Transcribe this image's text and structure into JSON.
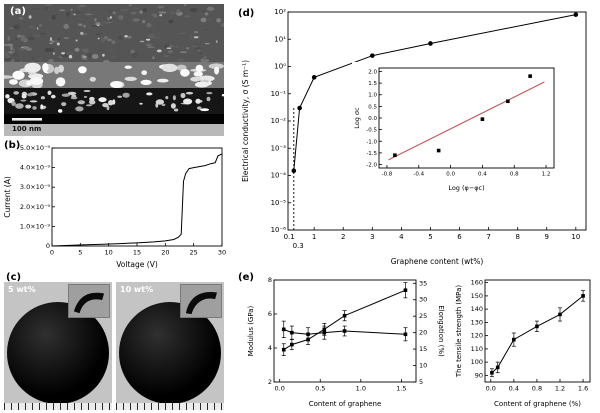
{
  "figure": {
    "panels": {
      "a": {
        "label": "(a)",
        "scale_bar_text": "100 nm"
      },
      "b": {
        "label": "(b)"
      },
      "c": {
        "label": "(c)",
        "photos": [
          {
            "label": "5 wt%"
          },
          {
            "label": "10 wt%"
          }
        ]
      },
      "d": {
        "label": "(d)"
      },
      "e": {
        "label": "(e)"
      }
    },
    "colors": {
      "accent_fit_line": "#c94040",
      "data": "#000000",
      "background": "#ffffff"
    }
  },
  "chart_data": [
    {
      "id": "chart-b",
      "type": "line",
      "xlabel": "Voltage (V)",
      "ylabel": "Current (A)",
      "xlim": [
        0,
        30
      ],
      "xticks": [
        0,
        5,
        10,
        15,
        20,
        25,
        30
      ],
      "xtick_labels": [
        "0",
        "5",
        "10",
        "15",
        "20",
        "25",
        "30"
      ],
      "ylim": [
        0,
        5e-09
      ],
      "yticks": [
        0,
        1e-09,
        2e-09,
        3e-09,
        4e-09,
        5e-09
      ],
      "ytick_labels": [
        "0",
        "1.0×10⁻⁹",
        "2.0×10⁻⁹",
        "3.0×10⁻⁹",
        "4.0×10⁻⁹",
        "5.0×10⁻⁹"
      ],
      "series": [
        {
          "name": "I-V curve",
          "color": "#000000",
          "marker": "none",
          "points": [
            [
              0,
              0
            ],
            [
              3,
              3e-11
            ],
            [
              6,
              6e-11
            ],
            [
              9,
              9e-11
            ],
            [
              12,
              1.2e-10
            ],
            [
              15,
              1.6e-10
            ],
            [
              18,
              2.1e-10
            ],
            [
              20,
              2.6e-10
            ],
            [
              21.5,
              3.3e-10
            ],
            [
              22.3,
              4.5e-10
            ],
            [
              22.8,
              6e-10
            ],
            [
              23.2,
              3.3e-09
            ],
            [
              23.6,
              3.7e-09
            ],
            [
              24.2,
              3.95e-09
            ],
            [
              25,
              4e-09
            ],
            [
              26,
              4.05e-09
            ],
            [
              27,
              4.1e-09
            ],
            [
              28,
              4.2e-09
            ],
            [
              28.8,
              4.25e-09
            ],
            [
              29.3,
              4.6e-09
            ],
            [
              30,
              4.7e-09
            ]
          ]
        }
      ]
    },
    {
      "id": "chart-d",
      "type": "scatter-line",
      "ylog": true,
      "xlabel": "Graphene content (wt%)",
      "ylabel": "Electrical conductivity, σ (S m⁻¹)",
      "xlim": [
        0.1,
        10.35
      ],
      "xticks": [
        1,
        2,
        3,
        4,
        5,
        6,
        7,
        8,
        9,
        10
      ],
      "xtick_labels": [
        "1",
        "2",
        "3",
        "4",
        "5",
        "6",
        "7",
        "8",
        "9",
        "10"
      ],
      "ylim": [
        1e-06,
        100.0
      ],
      "yticks": [
        100.0,
        10.0,
        1,
        0.1,
        0.01,
        0.001,
        0.0001,
        1e-05,
        1e-06
      ],
      "ytick_labels": [
        "10²",
        "10¹",
        "10⁰",
        "10⁻¹",
        "10⁻²",
        "10⁻³",
        "10⁻⁴",
        "10⁻⁵",
        "10⁻⁶"
      ],
      "annotations": [
        {
          "text": "0.1",
          "x": 0.14,
          "row": 1
        },
        {
          "text": "0.3",
          "x": 0.45,
          "row": 2
        }
      ],
      "vlines": [
        {
          "x": 0.3,
          "y": 0.03
        }
      ],
      "series": [
        {
          "name": "conductivity",
          "color": "#000000",
          "marker": "circle",
          "points": [
            [
              0.3,
              0.00015
            ],
            [
              0.5,
              0.03
            ],
            [
              1,
              0.4
            ],
            [
              3,
              2.5
            ],
            [
              5,
              7
            ],
            [
              10,
              80
            ]
          ]
        }
      ]
    },
    {
      "id": "chart-d-inset",
      "type": "scatter",
      "xlabel": "Log (φ−φc)",
      "ylabel": "Log σc",
      "xlim": [
        -0.9,
        1.3
      ],
      "xticks": [
        -0.8,
        -0.4,
        0,
        0.4,
        0.8,
        1.2
      ],
      "xtick_labels": [
        "-0.8",
        "-0.4",
        "0.0",
        "0.4",
        "0.8",
        "1.2"
      ],
      "ylim": [
        -2.15,
        2.15
      ],
      "yticks": [
        -2,
        -1.5,
        -1,
        -0.5,
        0,
        0.5,
        1,
        1.5,
        2
      ],
      "ytick_labels": [
        "-2.0",
        "-1.5",
        "-1.0",
        "-0.5",
        "0.0",
        "0.5",
        "1.0",
        "1.5",
        "2.0"
      ],
      "lines": [
        {
          "x1": -0.78,
          "y1": -1.8,
          "x2": 1.18,
          "y2": 1.55,
          "color": "#c94040",
          "w": 1
        }
      ],
      "series": [
        {
          "name": "percolation fit data",
          "color": "#000000",
          "marker": "square",
          "line": false,
          "points": [
            [
              -0.7,
              -1.6
            ],
            [
              -0.15,
              -1.4
            ],
            [
              0.4,
              -0.05
            ],
            [
              0.72,
              0.72
            ],
            [
              1.0,
              1.8
            ]
          ]
        }
      ]
    },
    {
      "id": "chart-e1",
      "type": "line",
      "xlabel": "Content of graphene",
      "ylabel": "Modulus (GPa)",
      "y2label": "Elongation (%)",
      "xlim": [
        -0.07,
        1.68
      ],
      "xticks": [
        0,
        0.5,
        1,
        1.5
      ],
      "xtick_labels": [
        "0.0",
        "0.5",
        "1.0",
        "1.5"
      ],
      "ylim": [
        2,
        8
      ],
      "yticks": [
        2,
        4,
        6,
        8
      ],
      "ytick_labels": [
        "2",
        "4",
        "6",
        "8"
      ],
      "y2lim": [
        5,
        36
      ],
      "y2ticks": [
        5,
        10,
        15,
        20,
        25,
        30,
        35
      ],
      "y2tick_labels": [
        "5",
        "10",
        "15",
        "20",
        "25",
        "30",
        "35"
      ],
      "series": [
        {
          "name": "Modulus",
          "axis": "left",
          "color": "#000000",
          "marker": "square",
          "points": [
            [
              0.05,
              3.9
            ],
            [
              0.15,
              4.2
            ],
            [
              0.35,
              4.5
            ],
            [
              0.55,
              5.1
            ],
            [
              0.8,
              5.9
            ],
            [
              1.55,
              7.4
            ]
          ],
          "yerr": [
            0.35,
            0.3,
            0.3,
            0.35,
            0.3,
            0.45
          ]
        },
        {
          "name": "Elongation",
          "axis": "right",
          "color": "#000000",
          "marker": "square",
          "points": [
            [
              0.05,
              21
            ],
            [
              0.15,
              20
            ],
            [
              0.35,
              19.5
            ],
            [
              0.55,
              20
            ],
            [
              0.8,
              20.5
            ],
            [
              1.55,
              19.5
            ]
          ],
          "yerr": [
            2.5,
            2,
            2,
            2,
            1.5,
            2
          ]
        }
      ]
    },
    {
      "id": "chart-e2",
      "type": "line",
      "xlabel": "Content of graphene (%)",
      "ylabel": "The tensile strength (MPa)",
      "xlim": [
        -0.1,
        1.72
      ],
      "xticks": [
        0,
        0.4,
        0.8,
        1.2,
        1.6
      ],
      "xtick_labels": [
        "0.0",
        "0.4",
        "0.8",
        "1.2",
        "1.6"
      ],
      "ylim": [
        85,
        162
      ],
      "yticks": [
        90,
        100,
        110,
        120,
        130,
        140,
        150,
        160
      ],
      "ytick_labels": [
        "90",
        "100",
        "110",
        "120",
        "130",
        "140",
        "150",
        "160"
      ],
      "series": [
        {
          "name": "Tensile strength",
          "color": "#000000",
          "marker": "square",
          "points": [
            [
              0.02,
              92
            ],
            [
              0.12,
              96
            ],
            [
              0.4,
              117
            ],
            [
              0.8,
              127
            ],
            [
              1.2,
              136
            ],
            [
              1.6,
              150
            ]
          ],
          "yerr": [
            3,
            4,
            5,
            4,
            5,
            4
          ]
        }
      ]
    }
  ]
}
